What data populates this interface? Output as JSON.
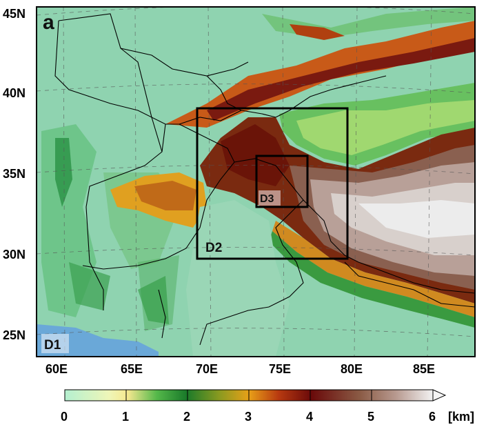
{
  "panel_letter": "a",
  "domains": [
    {
      "label": "D1"
    },
    {
      "label": "D2"
    },
    {
      "label": "D3"
    }
  ],
  "lat_labels": [
    "45N",
    "40N",
    "35N",
    "30N",
    "25N"
  ],
  "lon_labels": [
    "60E",
    "65E",
    "70E",
    "75E",
    "80E",
    "85E"
  ],
  "colorbar": {
    "ticks": [
      "0",
      "1",
      "2",
      "3",
      "4",
      "5",
      "6"
    ],
    "unit": "[km]",
    "colors": [
      "#a8ecc8",
      "#f4f0a0",
      "#1f8a3a",
      "#e0a020",
      "#7a1010",
      "#8a5a40",
      "#e8e8e8"
    ]
  },
  "colors": {
    "ocean": "#6aa8d8",
    "lowland": "#8fd3b0",
    "frame": "#000000"
  }
}
